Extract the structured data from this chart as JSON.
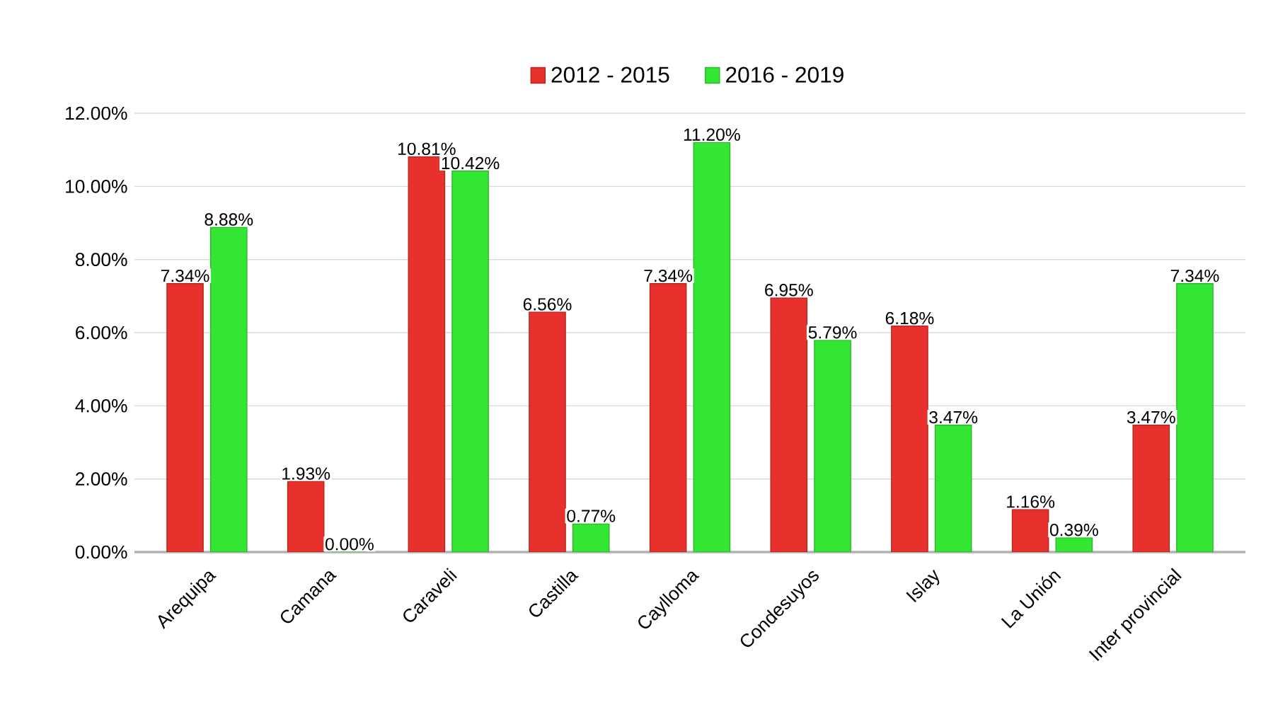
{
  "chart_data": {
    "type": "bar",
    "categories": [
      "Arequipa",
      "Camana",
      "Caraveli",
      "Castilla",
      "Caylloma",
      "Condesuyos",
      "Islay",
      "La Unión",
      "Inter provincial"
    ],
    "series": [
      {
        "name": "2012 - 2015",
        "color": "#e8302c",
        "values": [
          7.34,
          1.93,
          10.81,
          6.56,
          7.34,
          6.95,
          6.18,
          1.16,
          3.47
        ],
        "value_labels": [
          "7.34%",
          "1.93%",
          "10.81%",
          "6.56%",
          "7.34%",
          "6.95%",
          "6.18%",
          "1.16%",
          "3.47%"
        ]
      },
      {
        "name": "2016 - 2019",
        "color": "#33e633",
        "values": [
          8.88,
          0.0,
          10.42,
          0.77,
          11.2,
          5.79,
          3.47,
          0.39,
          7.34
        ],
        "value_labels": [
          "8.88%",
          "0.00%",
          "10.42%",
          "0.77%",
          "11.20%",
          "5.79%",
          "3.47%",
          "0.39%",
          "7.34%"
        ]
      }
    ],
    "ylim": [
      0,
      12
    ],
    "yticks": [
      {
        "value": 0,
        "label": "0.00%"
      },
      {
        "value": 2,
        "label": "2.00%"
      },
      {
        "value": 4,
        "label": "4.00%"
      },
      {
        "value": 6,
        "label": "6.00%"
      },
      {
        "value": 8,
        "label": "8.00%"
      },
      {
        "value": 10,
        "label": "10.00%"
      },
      {
        "value": 12,
        "label": "12.00%"
      }
    ],
    "grid": "y",
    "legend": "top"
  }
}
